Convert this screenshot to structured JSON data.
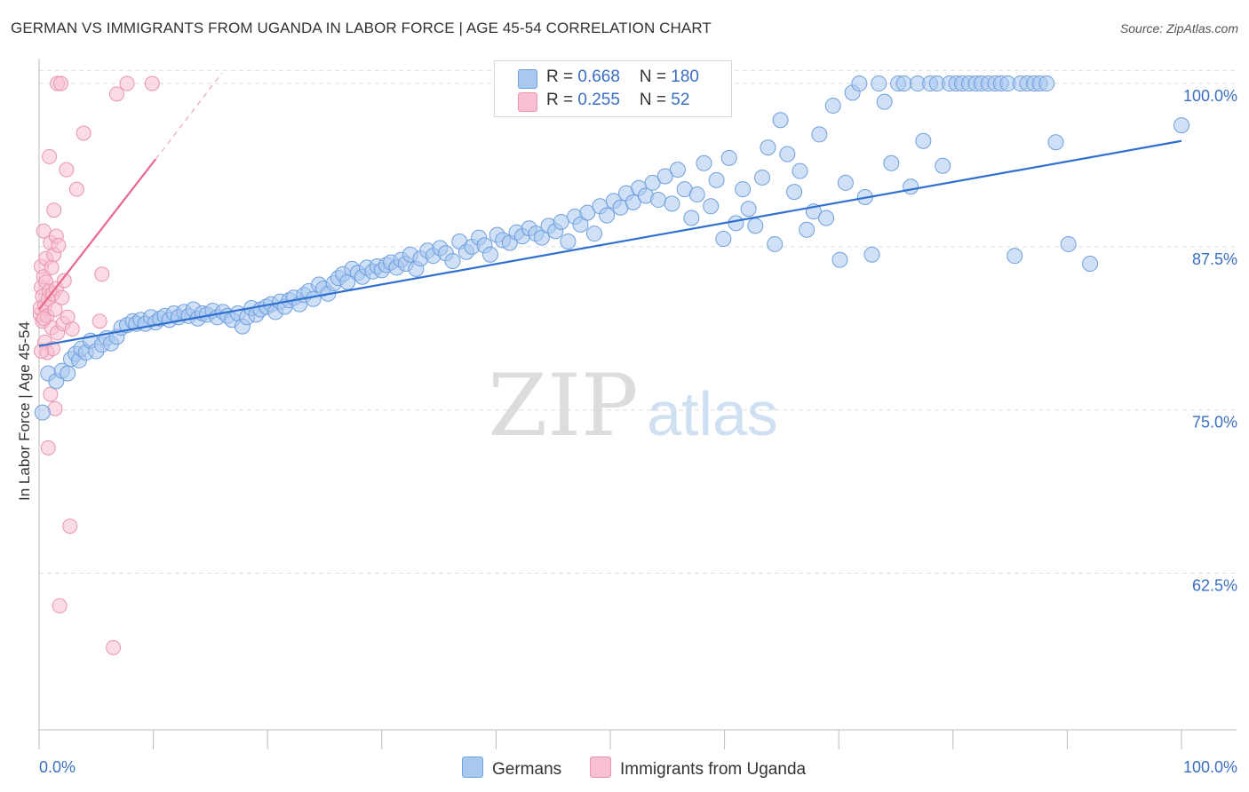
{
  "title": "GERMAN VS IMMIGRANTS FROM UGANDA IN LABOR FORCE | AGE 45-54 CORRELATION CHART",
  "source": "Source: ZipAtlas.com",
  "watermark": {
    "zip": "ZIP",
    "atlas": "atlas"
  },
  "legend": {
    "german": {
      "r_label": "R = ",
      "r_value": "0.668",
      "n_label": "N = ",
      "n_value": "180"
    },
    "uganda": {
      "r_label": "R = ",
      "r_value": "0.255",
      "n_label": "N = ",
      "n_value": "52"
    }
  },
  "colors": {
    "german_fill": "#a9c8f0",
    "german_stroke": "#6f9fdc",
    "german_line": "#2f6fd0",
    "uganda_fill": "#f7bfd0",
    "uganda_stroke": "#e894ae",
    "uganda_line": "#e8688f",
    "axis_label": "#3a6fc4",
    "grid": "#dddddd"
  },
  "chart_data": {
    "type": "scatter",
    "title": "GERMAN VS IMMIGRANTS FROM UGANDA IN LABOR FORCE | AGE 45-54 CORRELATION CHART",
    "xlabel": "",
    "ylabel": "In Labor Force | Age 45-54",
    "xlim": [
      0,
      100
    ],
    "ylim": [
      50.5,
      101.5
    ],
    "x_tick_labels": [
      "0.0%",
      "100.0%"
    ],
    "y_ticks": [
      {
        "value": 100.0,
        "label": "100.0%"
      },
      {
        "value": 87.5,
        "label": "87.5%"
      },
      {
        "value": 75.0,
        "label": "75.0%"
      },
      {
        "value": 62.5,
        "label": "62.5%"
      }
    ],
    "series": [
      {
        "name": "Germans",
        "r": 0.668,
        "n": 180,
        "trend": [
          [
            0,
            79.9
          ],
          [
            100,
            95.6
          ]
        ],
        "points": [
          [
            0.3,
            74.8
          ],
          [
            0.8,
            77.8
          ],
          [
            1.5,
            77.2
          ],
          [
            2.0,
            78.0
          ],
          [
            2.5,
            77.8
          ],
          [
            2.8,
            78.9
          ],
          [
            3.2,
            79.3
          ],
          [
            3.5,
            78.8
          ],
          [
            3.7,
            79.7
          ],
          [
            4.1,
            79.4
          ],
          [
            4.5,
            80.3
          ],
          [
            5.0,
            79.5
          ],
          [
            5.5,
            80.0
          ],
          [
            5.9,
            80.5
          ],
          [
            6.3,
            80.1
          ],
          [
            6.8,
            80.6
          ],
          [
            7.2,
            81.3
          ],
          [
            7.7,
            81.5
          ],
          [
            8.2,
            81.8
          ],
          [
            8.5,
            81.6
          ],
          [
            8.9,
            81.9
          ],
          [
            9.3,
            81.6
          ],
          [
            9.8,
            82.1
          ],
          [
            10.2,
            81.7
          ],
          [
            10.6,
            82.0
          ],
          [
            11.0,
            82.2
          ],
          [
            11.4,
            81.9
          ],
          [
            11.8,
            82.4
          ],
          [
            12.2,
            82.1
          ],
          [
            12.7,
            82.5
          ],
          [
            13.1,
            82.2
          ],
          [
            13.5,
            82.7
          ],
          [
            13.9,
            82.0
          ],
          [
            14.3,
            82.4
          ],
          [
            14.7,
            82.3
          ],
          [
            15.2,
            82.6
          ],
          [
            15.6,
            82.1
          ],
          [
            16.1,
            82.5
          ],
          [
            16.5,
            82.2
          ],
          [
            16.9,
            81.9
          ],
          [
            17.4,
            82.4
          ],
          [
            17.8,
            81.4
          ],
          [
            18.2,
            82.1
          ],
          [
            18.6,
            82.8
          ],
          [
            19.0,
            82.3
          ],
          [
            19.4,
            82.7
          ],
          [
            19.9,
            82.9
          ],
          [
            20.3,
            83.1
          ],
          [
            20.7,
            82.5
          ],
          [
            21.1,
            83.3
          ],
          [
            21.5,
            82.9
          ],
          [
            21.9,
            83.4
          ],
          [
            22.3,
            83.6
          ],
          [
            22.8,
            83.1
          ],
          [
            23.2,
            83.8
          ],
          [
            23.6,
            84.1
          ],
          [
            24.0,
            83.5
          ],
          [
            24.5,
            84.6
          ],
          [
            24.9,
            84.3
          ],
          [
            25.3,
            83.9
          ],
          [
            25.8,
            84.7
          ],
          [
            26.2,
            85.1
          ],
          [
            26.6,
            85.4
          ],
          [
            27.0,
            84.8
          ],
          [
            27.4,
            85.8
          ],
          [
            27.9,
            85.5
          ],
          [
            28.3,
            85.2
          ],
          [
            28.7,
            85.9
          ],
          [
            29.2,
            85.6
          ],
          [
            29.6,
            86.0
          ],
          [
            30.0,
            85.7
          ],
          [
            30.4,
            86.1
          ],
          [
            30.8,
            86.3
          ],
          [
            31.3,
            85.9
          ],
          [
            31.7,
            86.5
          ],
          [
            32.1,
            86.2
          ],
          [
            32.5,
            86.9
          ],
          [
            33.0,
            85.8
          ],
          [
            33.4,
            86.6
          ],
          [
            34.0,
            87.2
          ],
          [
            34.5,
            86.8
          ],
          [
            35.1,
            87.4
          ],
          [
            35.6,
            87.0
          ],
          [
            36.2,
            86.4
          ],
          [
            36.8,
            87.9
          ],
          [
            37.4,
            87.1
          ],
          [
            37.9,
            87.5
          ],
          [
            38.5,
            88.2
          ],
          [
            39.0,
            87.6
          ],
          [
            39.5,
            86.9
          ],
          [
            40.1,
            88.4
          ],
          [
            40.6,
            88.0
          ],
          [
            41.2,
            87.8
          ],
          [
            41.8,
            88.6
          ],
          [
            42.3,
            88.3
          ],
          [
            42.9,
            88.9
          ],
          [
            43.5,
            88.5
          ],
          [
            44.0,
            88.2
          ],
          [
            44.6,
            89.1
          ],
          [
            45.2,
            88.7
          ],
          [
            45.7,
            89.4
          ],
          [
            46.3,
            87.9
          ],
          [
            46.9,
            89.8
          ],
          [
            47.4,
            89.2
          ],
          [
            48.0,
            90.1
          ],
          [
            48.6,
            88.5
          ],
          [
            49.1,
            90.6
          ],
          [
            49.7,
            89.9
          ],
          [
            50.3,
            91.0
          ],
          [
            50.9,
            90.5
          ],
          [
            51.4,
            91.6
          ],
          [
            52.0,
            90.9
          ],
          [
            52.5,
            92.0
          ],
          [
            53.1,
            91.4
          ],
          [
            53.7,
            92.4
          ],
          [
            54.2,
            91.1
          ],
          [
            54.8,
            92.9
          ],
          [
            55.4,
            90.8
          ],
          [
            55.9,
            93.4
          ],
          [
            56.5,
            91.9
          ],
          [
            57.1,
            89.7
          ],
          [
            57.6,
            91.5
          ],
          [
            58.2,
            93.9
          ],
          [
            58.8,
            90.6
          ],
          [
            59.3,
            92.6
          ],
          [
            59.9,
            88.1
          ],
          [
            60.4,
            94.3
          ],
          [
            61.0,
            89.3
          ],
          [
            61.6,
            91.9
          ],
          [
            62.1,
            90.4
          ],
          [
            62.7,
            89.1
          ],
          [
            63.3,
            92.8
          ],
          [
            63.8,
            95.1
          ],
          [
            64.4,
            87.7
          ],
          [
            64.9,
            97.2
          ],
          [
            65.5,
            94.6
          ],
          [
            66.1,
            91.7
          ],
          [
            66.6,
            93.3
          ],
          [
            67.2,
            88.8
          ],
          [
            67.8,
            90.2
          ],
          [
            68.3,
            96.1
          ],
          [
            68.9,
            89.7
          ],
          [
            69.5,
            98.3
          ],
          [
            70.1,
            86.5
          ],
          [
            70.6,
            92.4
          ],
          [
            71.2,
            99.3
          ],
          [
            71.8,
            100.0
          ],
          [
            72.3,
            91.3
          ],
          [
            72.9,
            86.9
          ],
          [
            73.5,
            100.0
          ],
          [
            74.0,
            98.6
          ],
          [
            74.6,
            93.9
          ],
          [
            75.2,
            100.0
          ],
          [
            75.7,
            100.0
          ],
          [
            76.3,
            92.1
          ],
          [
            76.9,
            100.0
          ],
          [
            77.4,
            95.6
          ],
          [
            78.0,
            100.0
          ],
          [
            78.6,
            100.0
          ],
          [
            79.1,
            93.7
          ],
          [
            79.7,
            100.0
          ],
          [
            80.3,
            100.0
          ],
          [
            80.8,
            100.0
          ],
          [
            81.4,
            100.0
          ],
          [
            82.0,
            100.0
          ],
          [
            82.5,
            100.0
          ],
          [
            83.1,
            100.0
          ],
          [
            83.7,
            100.0
          ],
          [
            84.2,
            100.0
          ],
          [
            84.8,
            100.0
          ],
          [
            85.4,
            86.8
          ],
          [
            85.9,
            100.0
          ],
          [
            86.5,
            100.0
          ],
          [
            87.1,
            100.0
          ],
          [
            87.6,
            100.0
          ],
          [
            88.2,
            100.0
          ],
          [
            89.0,
            95.5
          ],
          [
            90.1,
            87.7
          ],
          [
            92.0,
            86.2
          ],
          [
            100.0,
            96.8
          ]
        ]
      },
      {
        "name": "Immigrants from Uganda",
        "r": 0.255,
        "n": 52,
        "trend": [
          [
            0,
            82.7
          ],
          [
            10.2,
            94.2
          ]
        ],
        "trend_dashed": [
          [
            10.2,
            94.2
          ],
          [
            16,
            100.8
          ]
        ],
        "points": [
          [
            0.1,
            82.3
          ],
          [
            0.1,
            82.8
          ],
          [
            0.2,
            84.4
          ],
          [
            0.2,
            86.0
          ],
          [
            0.3,
            81.8
          ],
          [
            0.3,
            83.7
          ],
          [
            0.4,
            85.2
          ],
          [
            0.4,
            88.7
          ],
          [
            0.5,
            80.2
          ],
          [
            0.5,
            83.0
          ],
          [
            0.6,
            84.8
          ],
          [
            0.6,
            86.6
          ],
          [
            0.7,
            79.4
          ],
          [
            0.7,
            82.2
          ],
          [
            0.8,
            83.5
          ],
          [
            0.8,
            72.1
          ],
          [
            0.9,
            84.1
          ],
          [
            0.9,
            94.4
          ],
          [
            1.0,
            87.8
          ],
          [
            1.0,
            76.2
          ],
          [
            1.1,
            85.9
          ],
          [
            1.1,
            81.3
          ],
          [
            1.2,
            83.9
          ],
          [
            1.2,
            79.7
          ],
          [
            1.3,
            90.3
          ],
          [
            1.3,
            86.9
          ],
          [
            1.4,
            75.1
          ],
          [
            1.4,
            82.7
          ],
          [
            1.5,
            84.3
          ],
          [
            1.5,
            88.3
          ],
          [
            1.6,
            100.0
          ],
          [
            1.6,
            80.9
          ],
          [
            1.7,
            87.6
          ],
          [
            1.8,
            60.0
          ],
          [
            1.9,
            100.0
          ],
          [
            2.0,
            83.6
          ],
          [
            2.1,
            81.6
          ],
          [
            2.2,
            84.9
          ],
          [
            2.4,
            93.4
          ],
          [
            2.5,
            82.1
          ],
          [
            2.7,
            66.1
          ],
          [
            2.9,
            81.2
          ],
          [
            3.3,
            91.9
          ],
          [
            3.9,
            96.2
          ],
          [
            5.3,
            81.8
          ],
          [
            5.5,
            85.4
          ],
          [
            6.5,
            56.8
          ],
          [
            6.8,
            99.2
          ],
          [
            7.7,
            100.0
          ],
          [
            9.9,
            100.0
          ],
          [
            0.4,
            82.0
          ],
          [
            0.2,
            79.5
          ]
        ]
      }
    ]
  }
}
